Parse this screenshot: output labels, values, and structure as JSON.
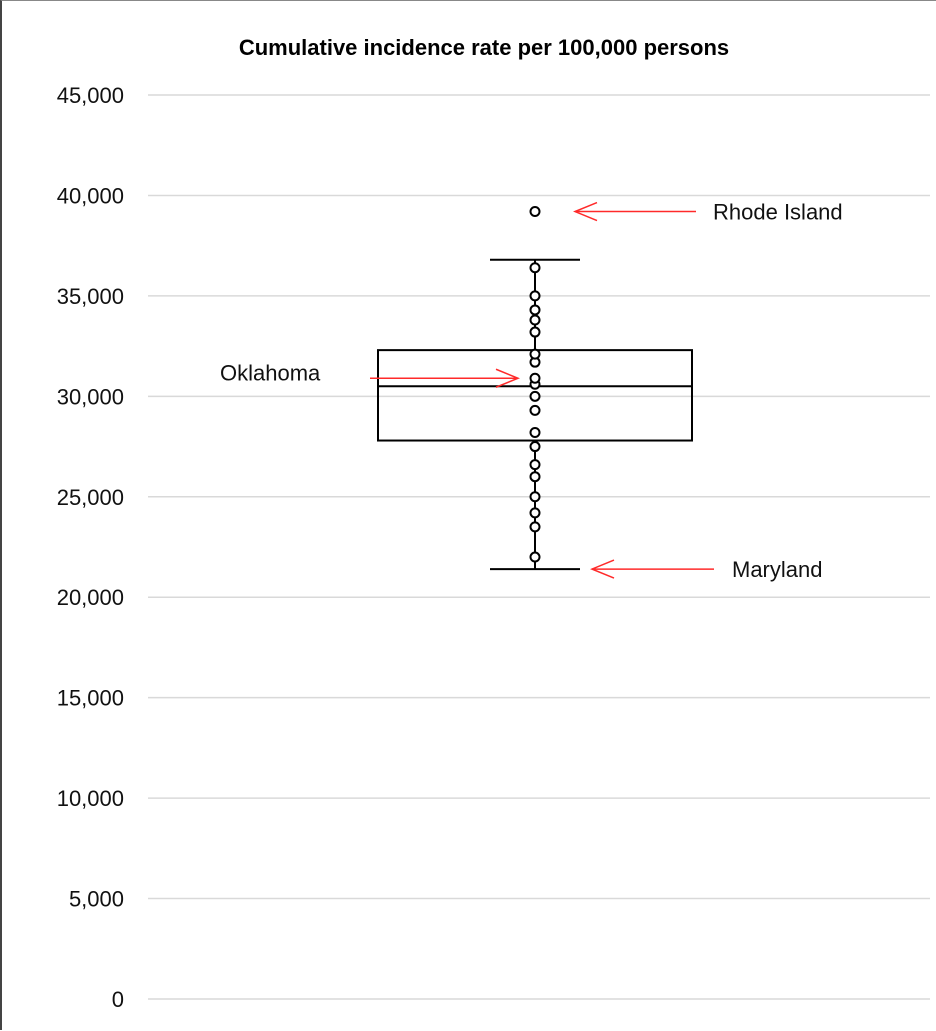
{
  "chart_data": {
    "type": "box",
    "title": "Cumulative incidence rate per 100,000 persons",
    "ylim": [
      0,
      45000
    ],
    "y_ticks": [
      0,
      5000,
      10000,
      15000,
      20000,
      25000,
      30000,
      35000,
      40000,
      45000
    ],
    "y_tick_labels": [
      "0",
      "5,000",
      "10,000",
      "15,000",
      "20,000",
      "25,000",
      "30,000",
      "35,000",
      "40,000",
      "45,000"
    ],
    "grid": true,
    "box": {
      "whisker_low": 21400,
      "q1": 27800,
      "median": 30500,
      "q3": 32300,
      "whisker_high": 36800
    },
    "points": [
      22000,
      23500,
      24200,
      25000,
      26000,
      26600,
      27500,
      28200,
      29300,
      30000,
      30600,
      30900,
      31700,
      32100,
      33200,
      33800,
      34300,
      35000,
      36400,
      39200
    ],
    "outliers": [
      39200
    ],
    "annotations": [
      {
        "label": "Rhode Island",
        "value": 39200,
        "arrow_color": "#ff2a2a"
      },
      {
        "label": "Oklahoma",
        "value": 30900,
        "arrow_color": "#ff2a2a"
      },
      {
        "label": "Maryland",
        "value": 21400,
        "arrow_color": "#ff2a2a"
      }
    ],
    "colors": {
      "box": "#000000",
      "grid": "#d9d9d9",
      "arrow": "#ff2a2a"
    }
  }
}
